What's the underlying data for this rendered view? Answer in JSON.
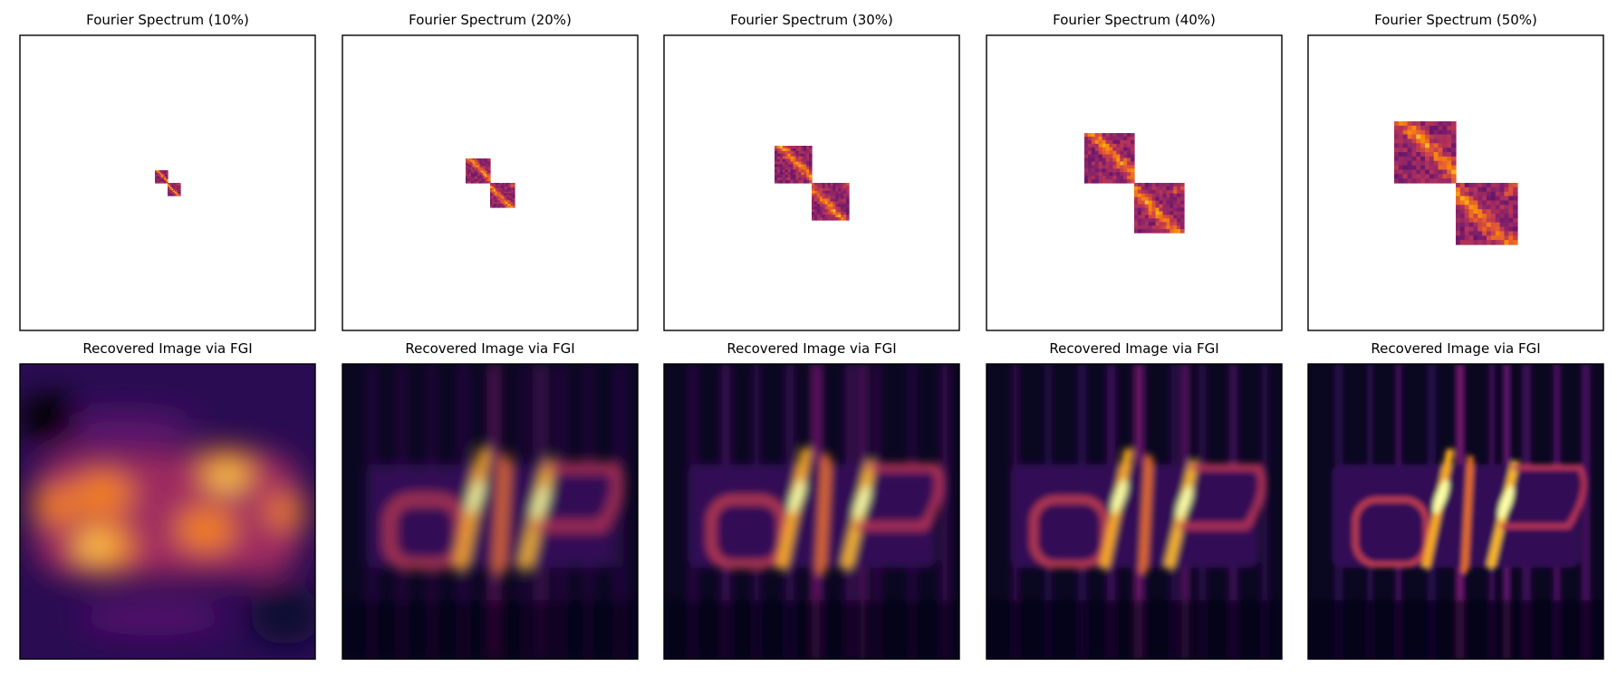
{
  "chart_data": {
    "type": "heatmap",
    "colormap": "inferno",
    "rows": [
      {
        "row": "fourier-spectrum",
        "panels": [
          {
            "title": "Fourier Spectrum (10%)",
            "sampling_ratio": 0.1
          },
          {
            "title": "Fourier Spectrum (20%)",
            "sampling_ratio": 0.2
          },
          {
            "title": "Fourier Spectrum (30%)",
            "sampling_ratio": 0.3
          },
          {
            "title": "Fourier Spectrum (40%)",
            "sampling_ratio": 0.4
          },
          {
            "title": "Fourier Spectrum (50%)",
            "sampling_ratio": 0.5
          }
        ]
      },
      {
        "row": "recovered-image",
        "panels": [
          {
            "title": "Recovered Image via FGI",
            "sampling_ratio": 0.1
          },
          {
            "title": "Recovered Image via FGI",
            "sampling_ratio": 0.2
          },
          {
            "title": "Recovered Image via FGI",
            "sampling_ratio": 0.3
          },
          {
            "title": "Recovered Image via FGI",
            "sampling_ratio": 0.4
          },
          {
            "title": "Recovered Image via FGI",
            "sampling_ratio": 0.5
          }
        ]
      }
    ],
    "axes_ticks": "none",
    "grid": false,
    "legend": "none"
  }
}
